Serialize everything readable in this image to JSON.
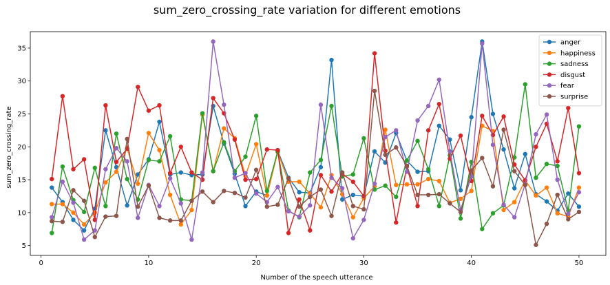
{
  "chart_data": {
    "type": "line",
    "title": "sum_zero_crossing_rate variation for different emotions",
    "xlabel": "Number of the speech utterance",
    "ylabel": "sum_zero_crossing_rate",
    "xlim": [
      -1,
      52.5
    ],
    "ylim": [
      3.5,
      37.5
    ],
    "xticks": [
      0,
      10,
      20,
      30,
      40,
      50
    ],
    "yticks": [
      5,
      10,
      15,
      20,
      25,
      30,
      35
    ],
    "legend_position": "top-right",
    "grid": false,
    "x": [
      1,
      2,
      3,
      4,
      5,
      6,
      7,
      8,
      9,
      10,
      11,
      12,
      13,
      14,
      15,
      16,
      17,
      18,
      19,
      20,
      21,
      22,
      23,
      24,
      25,
      26,
      27,
      28,
      29,
      30,
      31,
      32,
      33,
      34,
      35,
      36,
      37,
      38,
      39,
      40,
      41,
      42,
      43,
      44,
      45,
      46,
      47,
      48,
      49,
      50
    ],
    "series": [
      {
        "name": "anger",
        "color": "#1f77b4",
        "values": [
          13.8,
          11.6,
          8.9,
          7.3,
          10.6,
          22.5,
          16.9,
          11.1,
          15.8,
          18.1,
          23.8,
          15.8,
          16.1,
          15.7,
          15.8,
          26.2,
          20.5,
          15.9,
          11.0,
          13.2,
          12.6,
          19.4,
          15.3,
          13.1,
          13.0,
          16.9,
          33.2,
          12.0,
          12.7,
          12.5,
          19.3,
          17.6,
          22.1,
          17.9,
          16.2,
          16.3,
          23.2,
          21.1,
          13.4,
          24.5,
          36.0,
          25.0,
          19.6,
          13.7,
          18.9,
          12.8,
          11.7,
          10.3,
          12.9,
          10.9
        ]
      },
      {
        "name": "happiness",
        "color": "#ff7f0e",
        "values": [
          11.3,
          11.3,
          10.0,
          8.2,
          10.0,
          14.6,
          16.2,
          19.8,
          14.4,
          22.1,
          19.5,
          12.7,
          8.2,
          10.4,
          24.9,
          16.3,
          22.8,
          21.3,
          15.6,
          20.4,
          12.6,
          19.2,
          14.7,
          14.7,
          12.9,
          10.8,
          15.7,
          12.8,
          9.3,
          12.2,
          14.0,
          22.6,
          14.2,
          14.3,
          14.3,
          15.1,
          14.8,
          11.5,
          12.1,
          13.3,
          23.2,
          22.4,
          10.4,
          11.6,
          14.9,
          12.6,
          13.8,
          9.9,
          9.4,
          13.8
        ]
      },
      {
        "name": "sadness",
        "color": "#2ca02c",
        "values": [
          6.9,
          17.0,
          11.9,
          10.1,
          16.8,
          11.0,
          22.0,
          15.1,
          12.0,
          18.0,
          17.8,
          21.6,
          12.0,
          11.8,
          25.1,
          16.3,
          20.7,
          16.3,
          18.5,
          24.7,
          13.3,
          19.3,
          10.3,
          9.3,
          16.1,
          18.0,
          26.2,
          15.5,
          15.8,
          21.3,
          13.5,
          14.1,
          12.4,
          17.9,
          20.9,
          16.6,
          11.0,
          18.7,
          9.1,
          17.7,
          7.5,
          9.9,
          11.1,
          18.4,
          29.5,
          15.3,
          17.4,
          17.1,
          10.3,
          23.1
        ]
      },
      {
        "name": "disgust",
        "color": "#d62728",
        "values": [
          15.1,
          27.7,
          16.6,
          18.1,
          8.9,
          26.3,
          17.7,
          19.7,
          29.1,
          25.5,
          26.3,
          16.0,
          20.0,
          16.1,
          15.0,
          27.4,
          25.1,
          21.1,
          15.0,
          15.1,
          19.6,
          19.5,
          6.9,
          12.0,
          7.3,
          15.7,
          13.2,
          15.9,
          14.7,
          12.5,
          34.2,
          19.4,
          8.5,
          17.0,
          11.0,
          22.5,
          26.5,
          18.2,
          21.7,
          14.8,
          24.7,
          21.8,
          24.6,
          17.3,
          14.9,
          20.0,
          23.5,
          17.8,
          25.9,
          16.0
        ]
      },
      {
        "name": "fear",
        "color": "#9467bd",
        "values": [
          9.3,
          14.7,
          11.5,
          5.9,
          7.3,
          16.6,
          19.8,
          17.8,
          9.2,
          14.2,
          11.0,
          15.2,
          11.4,
          5.9,
          16.1,
          36.0,
          26.4,
          15.3,
          16.0,
          12.9,
          11.6,
          13.9,
          10.2,
          9.4,
          11.1,
          26.4,
          15.3,
          13.7,
          6.1,
          8.9,
          14.4,
          21.5,
          22.5,
          16.2,
          24.0,
          26.2,
          30.2,
          19.3,
          10.4,
          15.5,
          35.7,
          20.3,
          11.2,
          9.3,
          14.3,
          21.9,
          24.9,
          15.0,
          9.8,
          13.1
        ]
      },
      {
        "name": "surprise",
        "color": "#8c564b",
        "values": [
          8.7,
          8.6,
          13.4,
          11.8,
          6.3,
          9.4,
          9.5,
          21.2,
          10.9,
          14.1,
          9.2,
          8.8,
          8.8,
          11.8,
          13.2,
          11.6,
          13.3,
          13.0,
          12.3,
          16.5,
          10.9,
          11.2,
          15.2,
          10.9,
          12.4,
          13.5,
          9.5,
          16.1,
          11.0,
          10.5,
          28.5,
          18.8,
          19.9,
          17.1,
          12.7,
          12.7,
          12.8,
          11.4,
          10.1,
          16.4,
          18.3,
          14.0,
          22.6,
          16.3,
          14.2,
          5.1,
          8.3,
          12.7,
          9.0,
          10.1
        ]
      }
    ]
  }
}
